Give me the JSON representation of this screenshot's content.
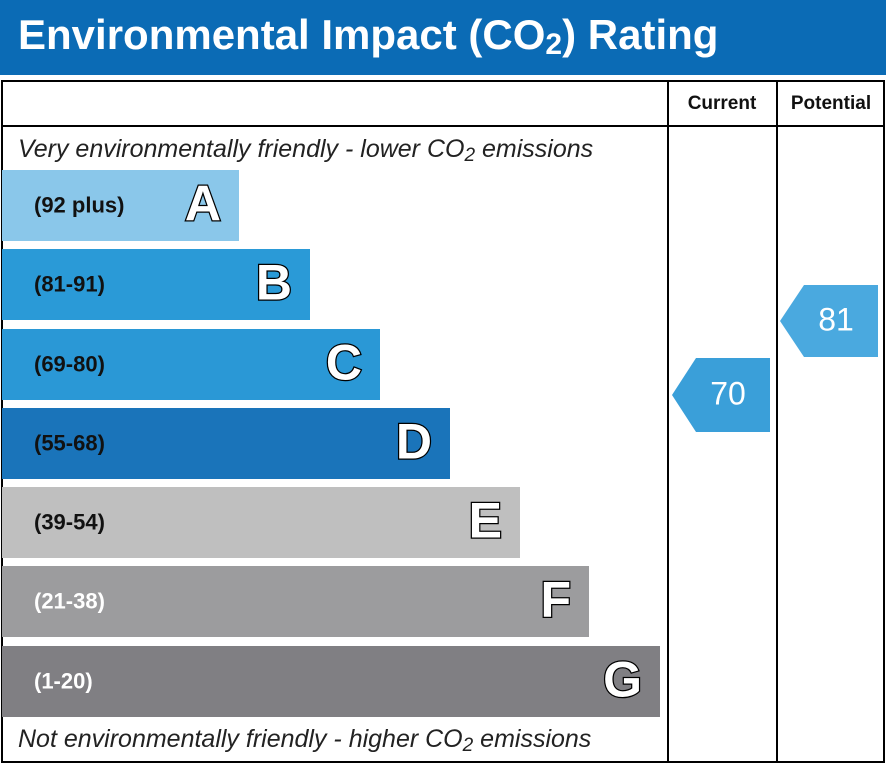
{
  "header": {
    "title": [
      "Environmental Impact (CO",
      "2",
      ") Rating"
    ]
  },
  "top_note": [
    "Very environmentally friendly - lower CO",
    "2",
    " emissions"
  ],
  "bottom_note": [
    "Not environmentally friendly - higher CO",
    "2",
    " emissions"
  ],
  "bands": [
    {
      "range": "(92 plus)",
      "letter": "A"
    },
    {
      "range": "(81-91)",
      "letter": "B"
    },
    {
      "range": "(69-80)",
      "letter": "C"
    },
    {
      "range": "(55-68)",
      "letter": "D"
    },
    {
      "range": "(39-54)",
      "letter": "E"
    },
    {
      "range": "(21-38)",
      "letter": "F"
    },
    {
      "range": "(1-20)",
      "letter": "G"
    }
  ],
  "current": {
    "label": "Current",
    "value": 70
  },
  "potential": {
    "label": "Potential",
    "value": 81
  }
}
